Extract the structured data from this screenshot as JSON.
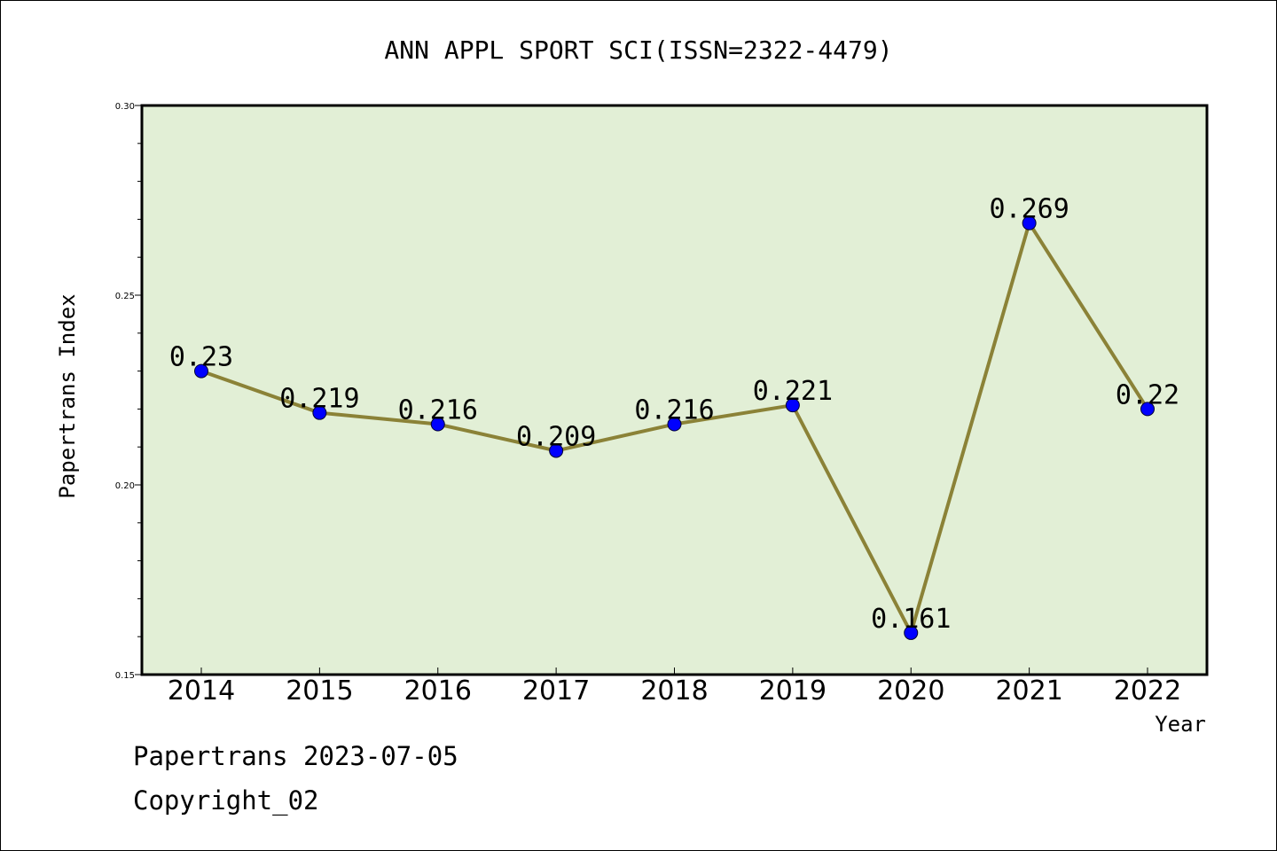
{
  "chart_data": {
    "type": "line",
    "title": "ANN APPL SPORT SCI(ISSN=2322-4479)",
    "xlabel": "Year",
    "ylabel": "Papertrans Index",
    "categories": [
      "2014",
      "2015",
      "2016",
      "2017",
      "2018",
      "2019",
      "2020",
      "2021",
      "2022"
    ],
    "values": [
      0.23,
      0.219,
      0.216,
      0.209,
      0.216,
      0.221,
      0.161,
      0.269,
      0.22
    ],
    "data_labels": [
      "0.23",
      "0.219",
      "0.216",
      "0.209",
      "0.216",
      "0.221",
      "0.161",
      "0.269",
      "0.22"
    ],
    "ylim": [
      0.15,
      0.3
    ],
    "yticks": [
      0.15,
      0.2,
      0.25,
      0.3
    ],
    "ytick_labels": [
      "0.15",
      "0.20",
      "0.25",
      "0.30"
    ],
    "grid": false,
    "colors": {
      "plot_background": "#e2efd6",
      "line": "#8b8237",
      "marker": "#0000ff",
      "axis": "#000000"
    }
  },
  "footer": {
    "line1": "Papertrans 2023-07-05",
    "line2": "Copyright_02"
  }
}
